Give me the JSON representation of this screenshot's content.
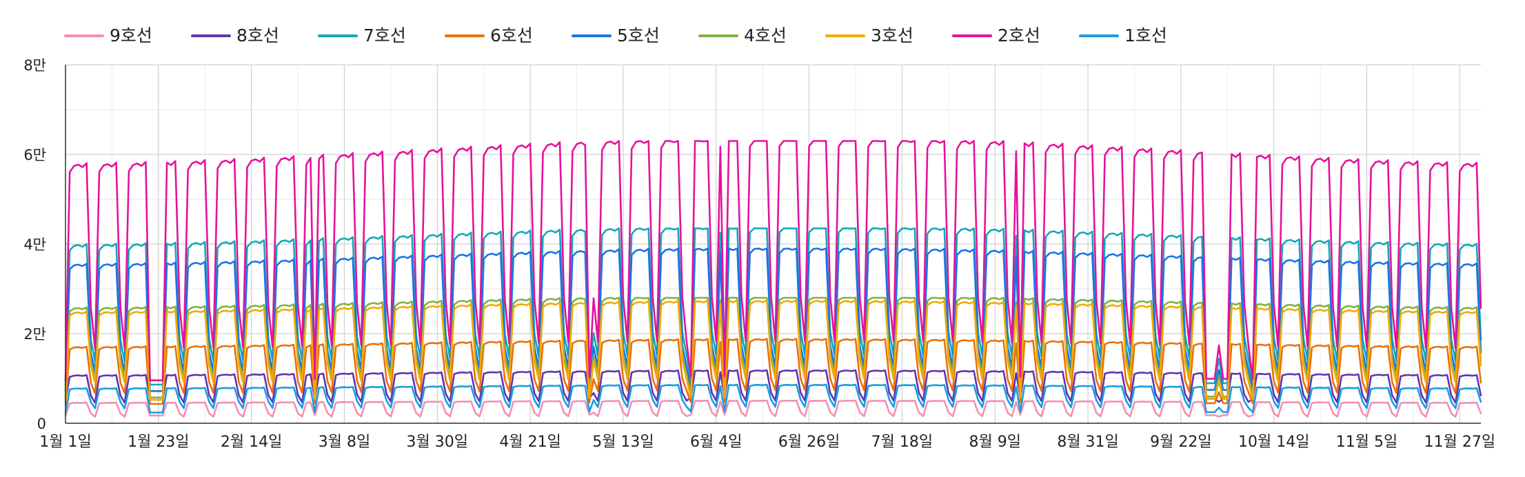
{
  "chart_data": {
    "type": "line",
    "title": "",
    "xlabel": "",
    "ylabel": "",
    "x_range": [
      "2023-01-01",
      "2023-12-02"
    ],
    "x_start": "2023-01-01",
    "ylim": [
      0,
      80000
    ],
    "y_ticks": [
      0,
      20000,
      40000,
      60000,
      80000
    ],
    "y_tick_labels": [
      "0",
      "2만",
      "4만",
      "6만",
      "8만"
    ],
    "x_tick_labels": [
      "1월 1일",
      "1월 23일",
      "2월 14일",
      "3월 8일",
      "3월 30일",
      "4월 21일",
      "5월 13일",
      "6월 4일",
      "6월 26일",
      "7월 18일",
      "8월 9일",
      "8월 31일",
      "9월 22일",
      "10월 14일",
      "11월 5일",
      "11월 27일"
    ],
    "grid": true,
    "legend_position": "top-left",
    "series": [
      {
        "name": "9호선",
        "color": "#f48fb1",
        "weekday": 4700,
        "saturday": 2300,
        "sunday": 1500,
        "lowest": 1800,
        "highest": 5200
      },
      {
        "name": "8호선",
        "color": "#5e35b1",
        "weekday": 11000,
        "saturday": 6500,
        "sunday": 4800,
        "lowest": 5500,
        "highest": 12500
      },
      {
        "name": "7호선",
        "color": "#12a9b8",
        "weekday": 41000,
        "saturday": 19500,
        "sunday": 14500,
        "lowest": 9000,
        "highest": 43500
      },
      {
        "name": "6호선",
        "color": "#e8710a",
        "weekday": 17500,
        "saturday": 9500,
        "sunday": 7000,
        "lowest": 4500,
        "highest": 19000
      },
      {
        "name": "5호선",
        "color": "#1a73e8",
        "weekday": 36500,
        "saturday": 16500,
        "sunday": 12000,
        "lowest": 7500,
        "highest": 39000
      },
      {
        "name": "4호선",
        "color": "#7cb342",
        "weekday": 26500,
        "saturday": 14500,
        "sunday": 10500,
        "lowest": 6000,
        "highest": 28000
      },
      {
        "name": "3호선",
        "color": "#f2a900",
        "weekday": 25500,
        "saturday": 13500,
        "sunday": 9500,
        "lowest": 5500,
        "highest": 27500
      },
      {
        "name": "2호선",
        "color": "#e5129b",
        "weekday": 59500,
        "saturday": 27000,
        "sunday": 17500,
        "lowest": 10000,
        "highest": 63000
      },
      {
        "name": "1호선",
        "color": "#199de0",
        "weekday": 8000,
        "saturday": 5000,
        "sunday": 3500,
        "lowest": 2500,
        "highest": 9000
      }
    ]
  }
}
